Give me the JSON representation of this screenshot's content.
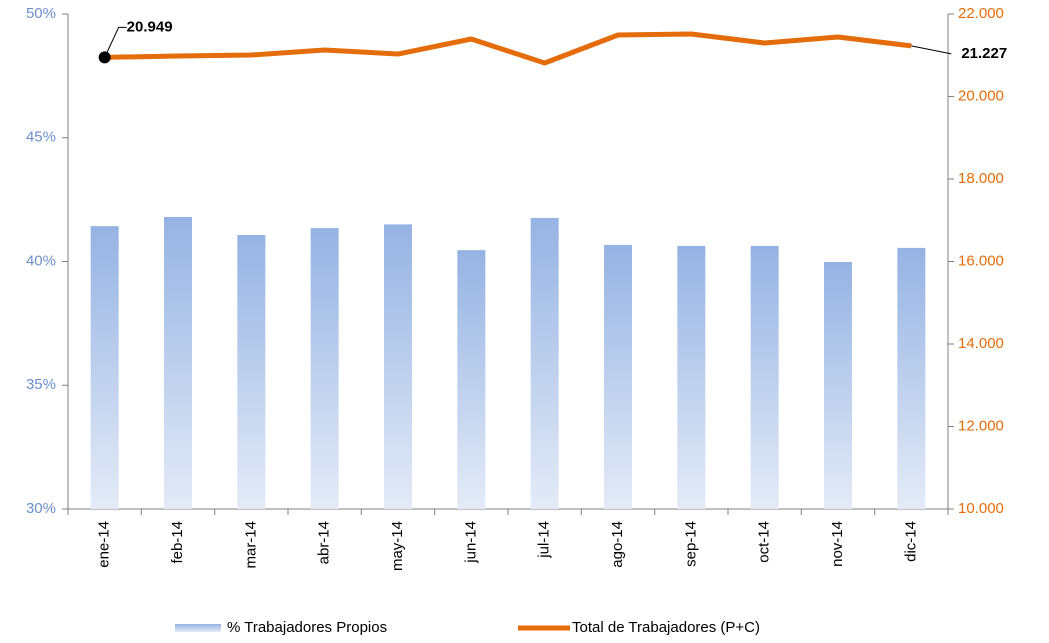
{
  "chart_data": {
    "type": "bar-line",
    "categories": [
      "ene-14",
      "feb-14",
      "mar-14",
      "abr-14",
      "may-14",
      "jun-14",
      "jul-14",
      "ago-14",
      "sep-14",
      "oct-14",
      "nov-14",
      "dic-14"
    ],
    "series": [
      {
        "name": "% Trabajadores Propios",
        "color": "#95b3e3",
        "type": "bar",
        "values": [
          41.43,
          41.8,
          41.07,
          41.35,
          41.5,
          40.46,
          41.76,
          40.67,
          40.63,
          40.63,
          39.98,
          40.55
        ]
      },
      {
        "name": "Total de Trabajadores (P+C)",
        "color": "#e46c0a",
        "type": "line",
        "axis": "y2",
        "values": [
          20949,
          20982,
          21006,
          21127,
          21030,
          21394,
          20812,
          21491,
          21515,
          21297,
          21442,
          21227
        ],
        "value_labels": [
          "20.949",
          null,
          null,
          null,
          null,
          null,
          null,
          null,
          null,
          null,
          null,
          "21.227"
        ]
      }
    ],
    "ylim": [
      30,
      50
    ],
    "yticks": [
      {
        "value": 30,
        "label": "30%"
      },
      {
        "value": 35,
        "label": "35%"
      },
      {
        "value": 40,
        "label": "40%"
      },
      {
        "value": 45,
        "label": "45%"
      },
      {
        "value": 50,
        "label": "50%"
      }
    ],
    "y2lim": [
      10000,
      22000
    ],
    "y2ticks": [
      {
        "value": 10000,
        "label": "10.000"
      },
      {
        "value": 12000,
        "label": "12.000"
      },
      {
        "value": 14000,
        "label": "14.000"
      },
      {
        "value": 16000,
        "label": "16.000"
      },
      {
        "value": 18000,
        "label": "18.000"
      },
      {
        "value": 20000,
        "label": "20.000"
      },
      {
        "value": 22000,
        "label": "22.000"
      }
    ],
    "legend": "bottom"
  }
}
